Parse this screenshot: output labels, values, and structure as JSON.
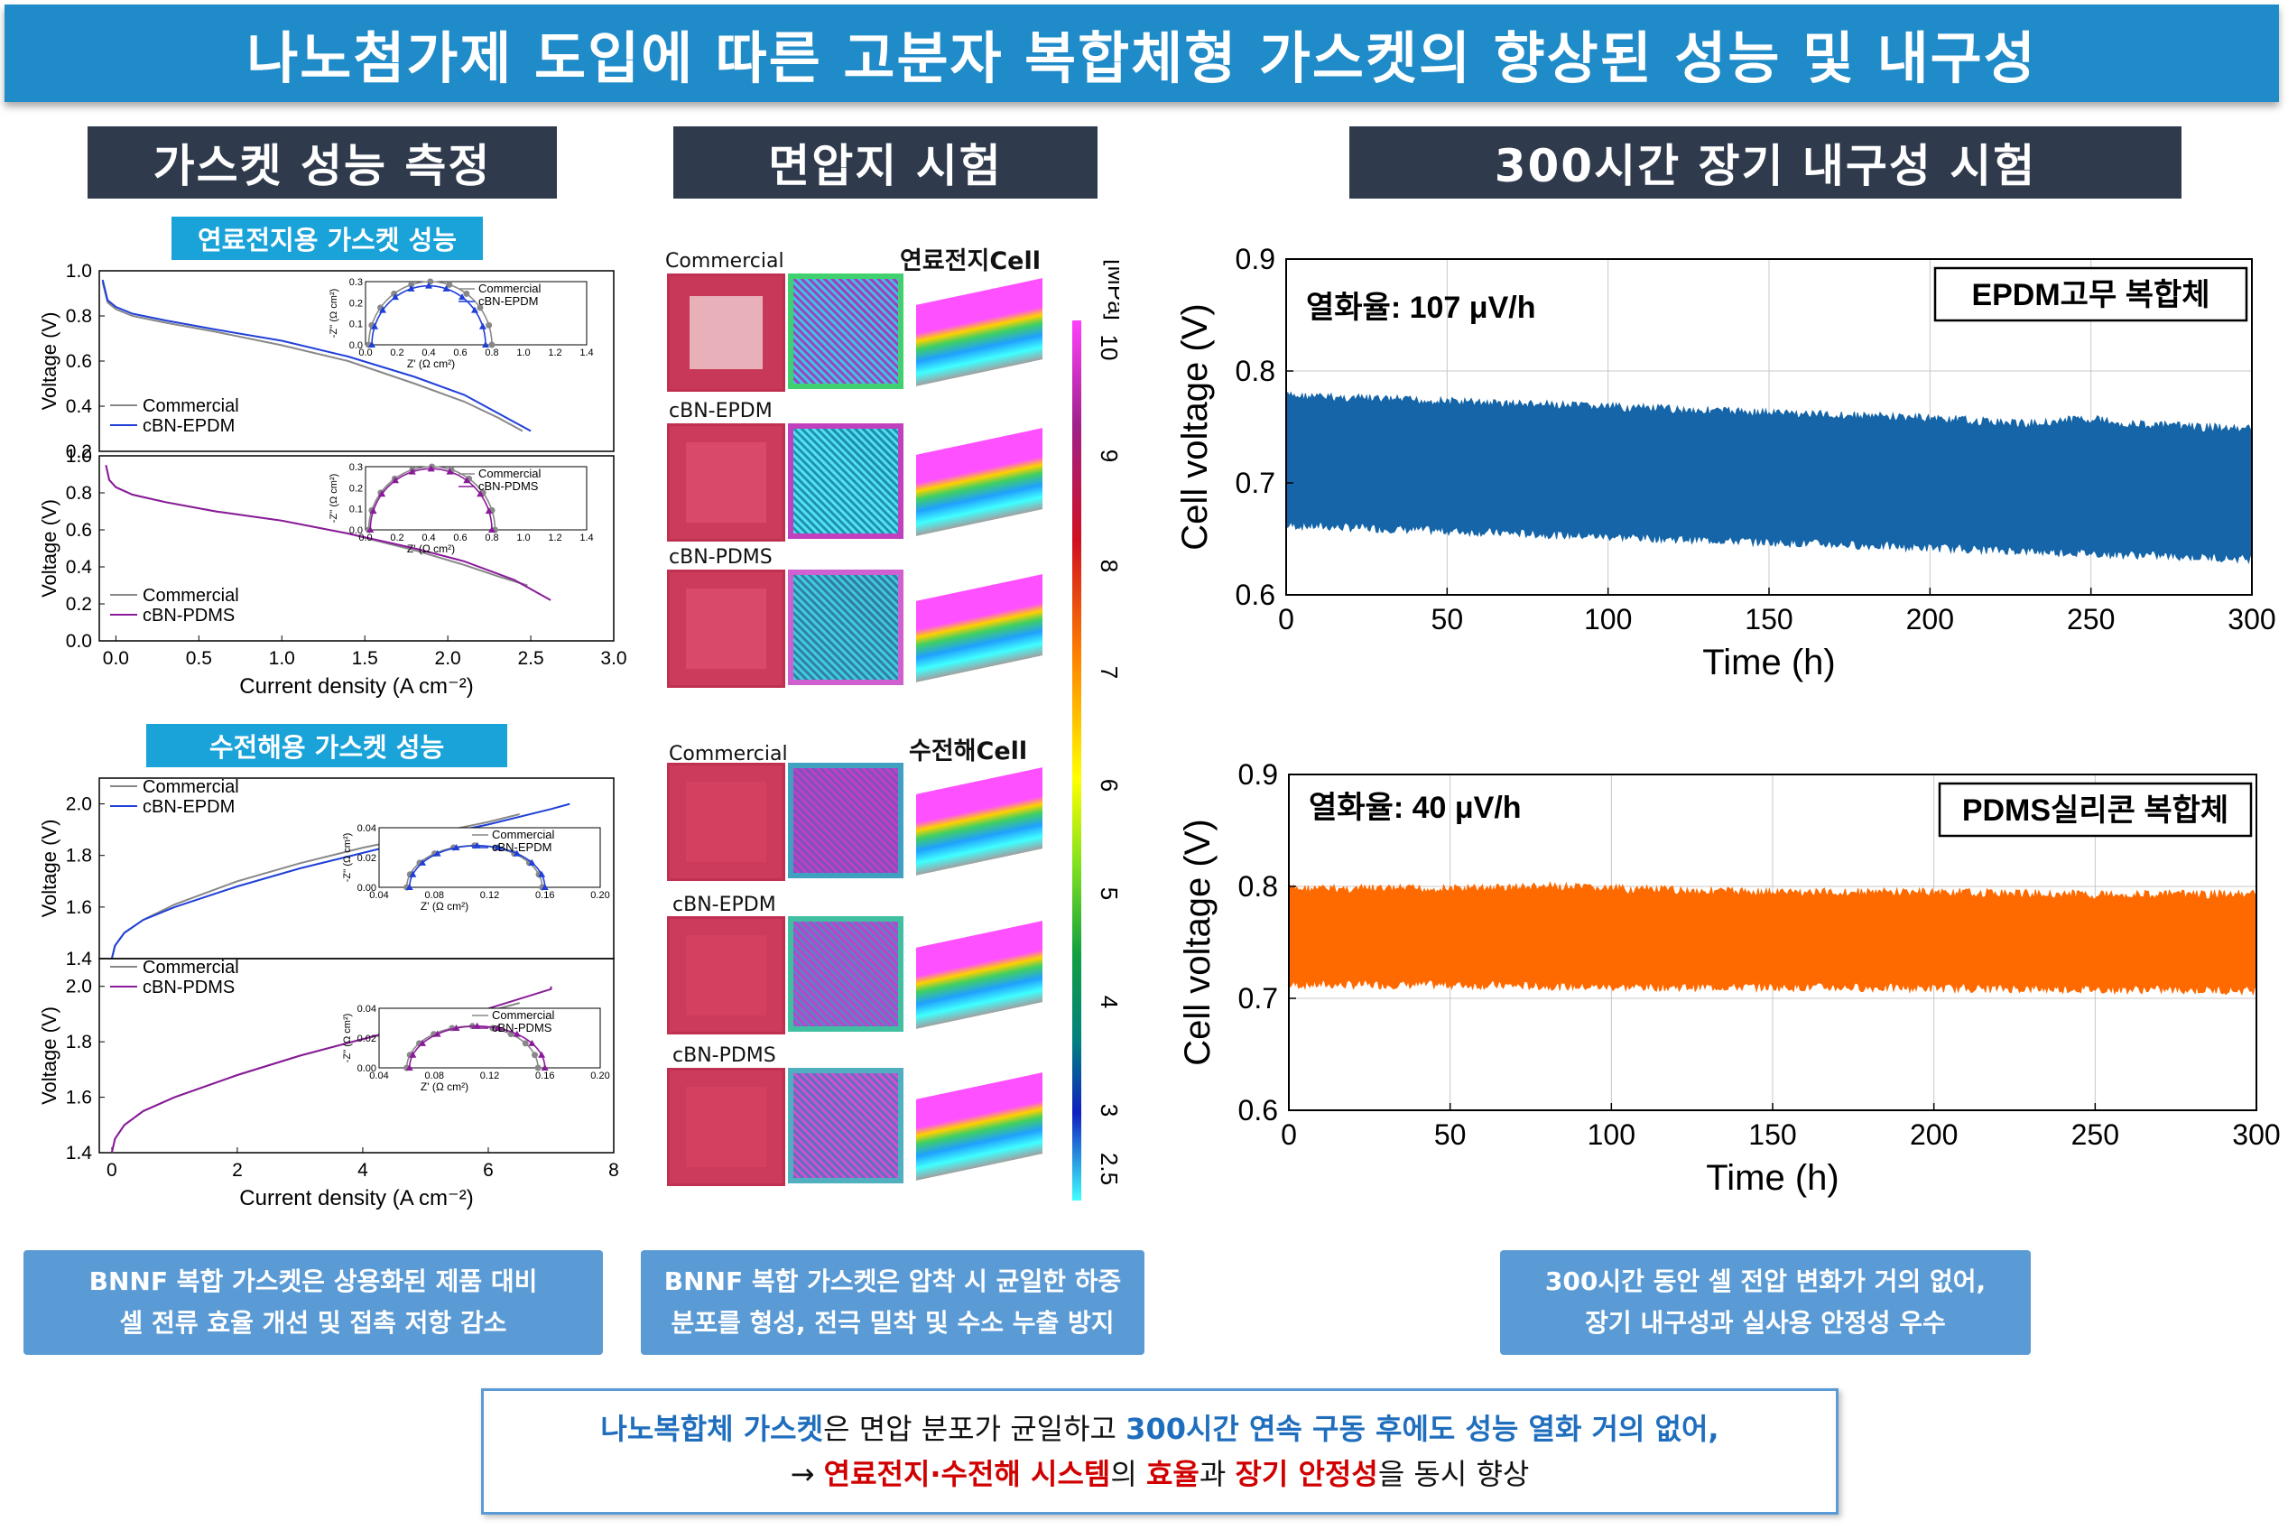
{
  "header": {
    "title": "나노첨가제 도입에 따른 고분자 복합체형 가스켓의 향상된 성능 및 내구성"
  },
  "sections": {
    "performance": "가스켓 성능 측정",
    "pressure": "면압지 시험",
    "durability": "300시간 장기 내구성 시험"
  },
  "subheads": {
    "fuel_cell": "연료전지용 가스켓 성능",
    "electrolysis": "수전해용 가스켓 성능"
  },
  "pressure_panel": {
    "fuel_cell_label": "연료전지Cell",
    "electrolysis_label": "수전해Cell",
    "labels_fc": [
      "Commercial",
      "cBN-EPDM",
      "cBN-PDMS"
    ],
    "labels_el": [
      "Commercial",
      "cBN-EPDM",
      "cBN-PDMS"
    ],
    "colorbar_unit": "[MPa]",
    "colorbar_ticks": [
      "10",
      "9",
      "8",
      "7",
      "6",
      "5",
      "4",
      "3",
      "2.5"
    ]
  },
  "notes": {
    "left": [
      "BNNF 복합 가스켓은 상용화된 제품 대비",
      "셀 전류 효율 개선 및 접촉 저항 감소"
    ],
    "middle": [
      "BNNF 복합 가스켓은 압착 시 균일한 하중",
      "분포를 형성, 전극 밀착 및 수소 누출 방지"
    ],
    "right": [
      "300시간 동안 셀 전압 변화가 거의 없어,",
      "장기 내구성과 실사용 안정성 우수"
    ]
  },
  "conclusion": {
    "line1_a": "나노복합체 가스켓",
    "line1_b": "은 면압 분포가 균일하고 ",
    "line1_c": "300시간 연속 구동 후에도 성능 열화 거의 없어,",
    "line2_a": "→ ",
    "line2_b": "연료전지·수전해 시스템",
    "line2_c": "의 ",
    "line2_d": "효율",
    "line2_e": "과 ",
    "line2_f": "장기 안정성",
    "line2_g": "을 동시 향상"
  },
  "colors": {
    "commercial": "#888888",
    "epdm": "#1f3fd8",
    "pdms": "#8a1a9a",
    "epdm_durability": "#1565a8",
    "pdms_durability": "#ff6a00"
  },
  "chart_data": [
    {
      "id": "fc_epdm",
      "type": "line",
      "title": "",
      "ylabel": "Voltage (V)",
      "ylim": [
        0.2,
        1.0
      ],
      "yticks": [
        "1.0",
        "0.8",
        "0.6",
        "0.4",
        "0.2"
      ],
      "xlim": [
        -0.1,
        3.0
      ],
      "legend": [
        "Commercial",
        "cBN-EPDM"
      ],
      "series": [
        {
          "name": "Commercial",
          "x": [
            -0.08,
            -0.05,
            0,
            0.1,
            0.3,
            0.6,
            1.0,
            1.4,
            1.8,
            2.1,
            2.3,
            2.45
          ],
          "y": [
            0.95,
            0.86,
            0.83,
            0.8,
            0.77,
            0.73,
            0.67,
            0.6,
            0.5,
            0.42,
            0.35,
            0.29
          ]
        },
        {
          "name": "cBN-EPDM",
          "x": [
            -0.08,
            -0.05,
            0,
            0.1,
            0.3,
            0.6,
            1.0,
            1.4,
            1.8,
            2.1,
            2.3,
            2.5
          ],
          "y": [
            0.96,
            0.87,
            0.84,
            0.81,
            0.78,
            0.74,
            0.69,
            0.62,
            0.53,
            0.45,
            0.37,
            0.29
          ]
        }
      ],
      "inset": {
        "xlabel": "Z' (Ω cm²)",
        "ylabel": "-Z'' (Ω cm²)",
        "xticks": [
          "0.0",
          "0.2",
          "0.4",
          "0.6",
          "0.8",
          "1.0",
          "1.2",
          "1.4"
        ],
        "yticks": [
          "0.3",
          "0.2",
          "0.1",
          "0.0"
        ],
        "legend": [
          "Commercial",
          "cBN-EPDM"
        ],
        "arcs": [
          [
            0.02,
            0.8,
            0.3
          ],
          [
            0.04,
            0.76,
            0.28
          ]
        ]
      }
    },
    {
      "id": "fc_pdms",
      "type": "line",
      "title": "",
      "ylabel": "Voltage (V)",
      "ylim": [
        0.0,
        1.0
      ],
      "yticks": [
        "1.0",
        "0.8",
        "0.6",
        "0.4",
        "0.2",
        "0.0"
      ],
      "xlim": [
        -0.1,
        3.0
      ],
      "xticks": [
        "0.0",
        "0.5",
        "1.0",
        "1.5",
        "2.0",
        "2.5",
        "3.0"
      ],
      "xlabel": "Current density (A cm⁻²)",
      "legend": [
        "Commercial",
        "cBN-PDMS"
      ],
      "series": [
        {
          "name": "Commercial",
          "x": [
            -0.06,
            -0.04,
            0,
            0.1,
            0.3,
            0.6,
            1.0,
            1.4,
            1.8,
            2.1,
            2.3,
            2.48
          ],
          "y": [
            0.95,
            0.87,
            0.83,
            0.79,
            0.75,
            0.7,
            0.65,
            0.58,
            0.49,
            0.41,
            0.35,
            0.3
          ]
        },
        {
          "name": "cBN-PDMS",
          "x": [
            -0.06,
            -0.04,
            0,
            0.1,
            0.3,
            0.6,
            1.0,
            1.4,
            1.8,
            2.1,
            2.4,
            2.62
          ],
          "y": [
            0.95,
            0.87,
            0.83,
            0.79,
            0.75,
            0.7,
            0.65,
            0.58,
            0.5,
            0.43,
            0.33,
            0.22
          ]
        }
      ],
      "inset": {
        "xlabel": "Z' (Ω cm²)",
        "ylabel": "-Z'' (Ω cm²)",
        "xticks": [
          "0.0",
          "0.2",
          "0.4",
          "0.6",
          "0.8",
          "1.0",
          "1.2",
          "1.4"
        ],
        "yticks": [
          "0.3",
          "0.2",
          "0.1",
          "0.0"
        ],
        "legend": [
          "Commercial",
          "cBN-PDMS"
        ],
        "arcs": [
          [
            0.02,
            0.82,
            0.3
          ],
          [
            0.03,
            0.8,
            0.29
          ]
        ]
      }
    },
    {
      "id": "el_epdm",
      "type": "line",
      "ylabel": "Voltage (V)",
      "ylim": [
        1.4,
        2.1
      ],
      "yticks": [
        "2.0",
        "1.8",
        "1.6",
        "1.4"
      ],
      "xlim": [
        -0.2,
        8.0
      ],
      "legend": [
        "Commercial",
        "cBN-EPDM"
      ],
      "series": [
        {
          "name": "Commercial",
          "x": [
            0,
            0.05,
            0.2,
            0.5,
            1,
            2,
            3,
            4,
            5,
            6,
            6.5
          ],
          "y": [
            1.4,
            1.45,
            1.5,
            1.55,
            1.61,
            1.7,
            1.77,
            1.83,
            1.88,
            1.93,
            1.96
          ]
        },
        {
          "name": "cBN-EPDM",
          "x": [
            0,
            0.05,
            0.2,
            0.5,
            1,
            2,
            3,
            4,
            5,
            6,
            7,
            7.3
          ],
          "y": [
            1.4,
            1.45,
            1.5,
            1.55,
            1.6,
            1.68,
            1.75,
            1.81,
            1.87,
            1.92,
            1.98,
            2.0
          ]
        }
      ],
      "inset": {
        "xlabel": "Z' (Ω cm²)",
        "ylabel": "-Z'' (Ω cm²)",
        "xticks": [
          "0.04",
          "0.08",
          "0.12",
          "0.16",
          "0.20"
        ],
        "yticks": [
          "0.04",
          "0.02",
          "0.00"
        ],
        "legend": [
          "Commercial",
          "cBN-EPDM"
        ],
        "arcs": [
          [
            0.06,
            0.158,
            0.028
          ],
          [
            0.062,
            0.16,
            0.028
          ]
        ]
      }
    },
    {
      "id": "el_pdms",
      "type": "line",
      "ylabel": "Voltage (V)",
      "ylim": [
        1.4,
        2.1
      ],
      "yticks": [
        "2.0",
        "1.8",
        "1.6",
        "1.4"
      ],
      "xlim": [
        -0.2,
        8.0
      ],
      "xticks": [
        "0",
        "2",
        "4",
        "6",
        "8"
      ],
      "xlabel": "Current density (A cm⁻²)",
      "legend": [
        "Commercial",
        "cBN-PDMS"
      ],
      "series": [
        {
          "name": "Commercial",
          "x": [
            0,
            0.05,
            0.2,
            0.5,
            1,
            2,
            3,
            4,
            5,
            6,
            6.5
          ],
          "y": [
            1.4,
            1.45,
            1.5,
            1.55,
            1.6,
            1.68,
            1.75,
            1.81,
            1.86,
            1.91,
            1.94
          ]
        },
        {
          "name": "cBN-PDMS",
          "x": [
            0,
            0.05,
            0.2,
            0.5,
            1,
            2,
            3,
            4,
            5,
            6,
            7,
            7.0
          ],
          "y": [
            1.4,
            1.45,
            1.5,
            1.55,
            1.6,
            1.68,
            1.75,
            1.81,
            1.87,
            1.92,
            1.99,
            2.0
          ]
        }
      ],
      "inset": {
        "xlabel": "Z' (Ω cm²)",
        "ylabel": "-Z'' (Ω cm²)",
        "xticks": [
          "0.04",
          "0.08",
          "0.12",
          "0.16",
          "0.20"
        ],
        "yticks": [
          "0.04",
          "0.02",
          "0.00"
        ],
        "legend": [
          "Commercial",
          "cBN-PDMS"
        ],
        "arcs": [
          [
            0.06,
            0.155,
            0.028
          ],
          [
            0.062,
            0.16,
            0.028
          ]
        ]
      }
    },
    {
      "id": "dur_epdm",
      "type": "area",
      "xlabel": "Time (h)",
      "ylabel": "Cell voltage (V)",
      "xlim": [
        0,
        300
      ],
      "ylim": [
        0.6,
        0.9
      ],
      "xticks": [
        "0",
        "50",
        "100",
        "150",
        "200",
        "250",
        "300"
      ],
      "yticks": [
        "0.9",
        "0.8",
        "0.7",
        "0.6"
      ],
      "annotation": "열화율: 107 μV/h",
      "legend": "EPDM고무 복합체",
      "upper": {
        "x": [
          0,
          50,
          100,
          150,
          200,
          230,
          250,
          260,
          300
        ],
        "y": [
          0.78,
          0.775,
          0.77,
          0.765,
          0.76,
          0.755,
          0.76,
          0.755,
          0.75
        ]
      },
      "lower": {
        "x": [
          0,
          50,
          100,
          150,
          200,
          250,
          300
        ],
        "y": [
          0.66,
          0.655,
          0.65,
          0.645,
          0.64,
          0.635,
          0.63
        ]
      }
    },
    {
      "id": "dur_pdms",
      "type": "area",
      "xlabel": "Time (h)",
      "ylabel": "Cell voltage (V)",
      "xlim": [
        0,
        300
      ],
      "ylim": [
        0.6,
        0.9
      ],
      "xticks": [
        "0",
        "50",
        "100",
        "150",
        "200",
        "250",
        "300"
      ],
      "yticks": [
        "0.9",
        "0.8",
        "0.7",
        "0.6"
      ],
      "annotation": "열화율: 40 μV/h",
      "legend": "PDMS실리콘 복합체",
      "upper": {
        "x": [
          0,
          50,
          80,
          100,
          150,
          200,
          250,
          300
        ],
        "y": [
          0.8,
          0.8,
          0.802,
          0.8,
          0.797,
          0.797,
          0.795,
          0.795
        ]
      },
      "lower": {
        "x": [
          0,
          50,
          100,
          150,
          200,
          250,
          300
        ],
        "y": [
          0.71,
          0.71,
          0.708,
          0.708,
          0.707,
          0.706,
          0.705
        ]
      }
    }
  ]
}
